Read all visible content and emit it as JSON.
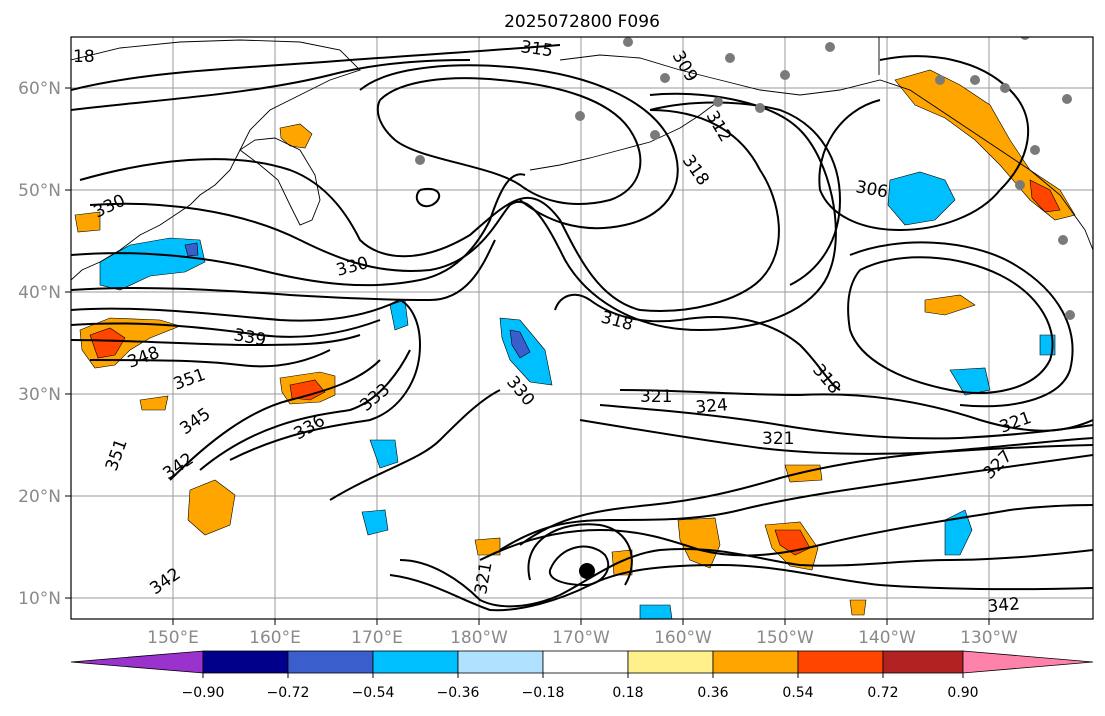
{
  "title": "2025072800 F096",
  "latitude_labels": [
    "60°N",
    "50°N",
    "40°N",
    "30°N",
    "20°N",
    "10°N"
  ],
  "longitude_labels": [
    "150°E",
    "160°E",
    "170°E",
    "180°W",
    "170°W",
    "160°W",
    "150°W",
    "140°W",
    "130°W"
  ],
  "contour_labels": [
    "18",
    "315",
    "309",
    "312",
    "318",
    "306",
    "330",
    "330",
    "339",
    "348",
    "351",
    "318",
    "318",
    "345",
    "333",
    "336",
    "330",
    "321",
    "324",
    "321",
    "321",
    "327",
    "351",
    "342",
    "342",
    "321",
    "342"
  ],
  "colorbar": {
    "tick_labels": [
      "−0.90",
      "−0.72",
      "−0.54",
      "−0.36",
      "−0.18",
      "0.18",
      "0.36",
      "0.54",
      "0.72",
      "0.90"
    ],
    "colors": [
      "#9a32cd",
      "#00008b",
      "#3a5fcd",
      "#00bfff",
      "#b0e2ff",
      "#ffffff",
      "#fff08c",
      "#ffa500",
      "#ff4500",
      "#b22222",
      "#ff82ab"
    ]
  }
}
